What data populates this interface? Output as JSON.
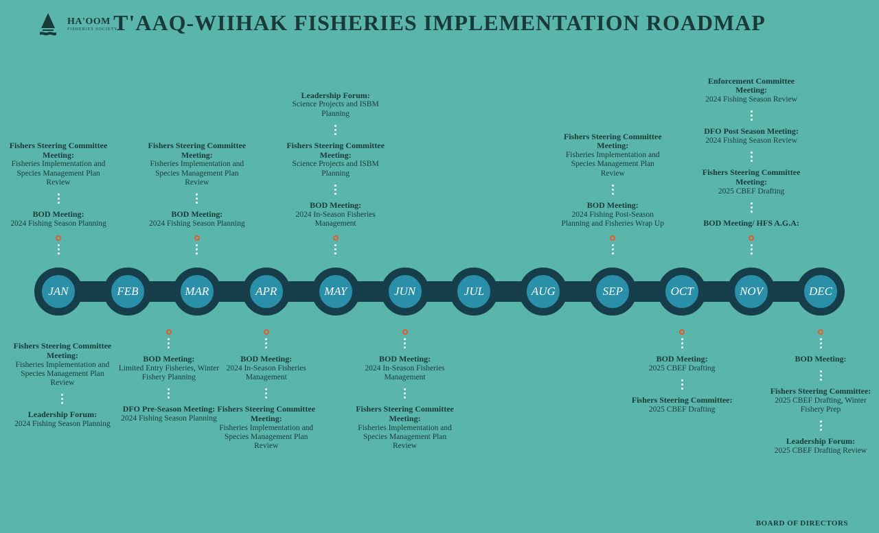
{
  "logo": {
    "main": "HA'OOM",
    "sub": "FISHERIES SOCIETY"
  },
  "title": "T'AAQ-WIIHAK FISHERIES IMPLEMENTATION ROADMAP",
  "footer": "BOARD OF DIRECTORS",
  "colors": {
    "background": "#5ab5ab",
    "timeline_bar": "#163d4a",
    "node_fill": "#2a8fa8",
    "node_ring": "#163d4a",
    "text": "#1a3a3a",
    "accent_ring": "#e85a2a",
    "dot": "#ffffff"
  },
  "months": [
    "JAN",
    "FEB",
    "MAR",
    "APR",
    "MAY",
    "JUN",
    "JUL",
    "AUG",
    "SEP",
    "OCT",
    "NOV",
    "DEC"
  ],
  "events": {
    "jan_top": [
      {
        "title": "BOD Meeting:",
        "desc": "2024 Fishing Season Planning"
      },
      {
        "title": "Fishers Steering Committee Meeting:",
        "desc": "Fisheries Implementation and Species Management Plan Review"
      }
    ],
    "feb_bottom": [
      {
        "title": "BOD Meeting:",
        "desc": "Limited Entry Fisheries, Winter Fishery Planning"
      },
      {
        "title": "DFO Pre-Season Meeting:",
        "desc": "2024 Fishing Season Planning"
      }
    ],
    "feb_bottom_left": [
      {
        "title": "Fishers Steering Committee Meeting:",
        "desc": "Fisheries Implementation and Species Management Plan Review"
      },
      {
        "title": "Leadership Forum:",
        "desc": "2024 Fishing Season Planning"
      }
    ],
    "mar_top": [
      {
        "title": "BOD Meeting:",
        "desc": "2024 Fishing Season Planning"
      },
      {
        "title": "Fishers Steering Committee Meeting:",
        "desc": "Fisheries Implementation and Species Management Plan Review"
      }
    ],
    "apr_bottom": [
      {
        "title": "BOD Meeting:",
        "desc": "2024 In-Season Fisheries Management"
      },
      {
        "title": "Fishers Steering Committee Meeting:",
        "desc": "Fisheries Implementation and Species Management Plan Review"
      }
    ],
    "may_top": [
      {
        "title": "BOD Meeting:",
        "desc": "2024 In-Season Fisheries Management"
      },
      {
        "title": "Fishers Steering Committee Meeting:",
        "desc": "Science Projects and ISBM Planning"
      },
      {
        "title": "Leadership Forum:",
        "desc": "Science Projects and ISBM Planning"
      }
    ],
    "jun_bottom": [
      {
        "title": "BOD Meeting:",
        "desc": "2024 In-Season Fisheries Management"
      },
      {
        "title": "Fishers Steering Committee Meeting:",
        "desc": "Fisheries Implementation and Species Management Plan Review"
      }
    ],
    "sep_top": [
      {
        "title": "BOD Meeting:",
        "desc": "2024 Fishing Post-Season Planning and Fisheries Wrap Up"
      },
      {
        "title": "Fishers Steering Committee Meeting:",
        "desc": "Fisheries Implementation and Species Management Plan Review"
      }
    ],
    "oct_bottom": [
      {
        "title": "BOD Meeting:",
        "desc": "2025 CBEF Drafting"
      },
      {
        "title": "Fishers Steering Committee:",
        "desc": "2025 CBEF Drafting"
      }
    ],
    "nov_top": [
      {
        "title": "BOD Meeting/ HFS A.G.A:",
        "desc": ""
      },
      {
        "title": "Fishers Steering Committee Meeting:",
        "desc": "2025 CBEF Drafting"
      },
      {
        "title": "DFO Post Season Meeting:",
        "desc": "2024 Fishing Season Review"
      },
      {
        "title": "Enforcement Committee Meeting:",
        "desc": "2024 Fishing Season Review"
      }
    ],
    "dec_bottom": [
      {
        "title": "BOD Meeting:",
        "desc": ""
      },
      {
        "title": "Fishers Steering Committee:",
        "desc": "2025 CBEF Drafting, Winter Fishery Prep"
      },
      {
        "title": "Leadership Forum:",
        "desc": "2025 CBEF Drafting Review"
      }
    ]
  }
}
